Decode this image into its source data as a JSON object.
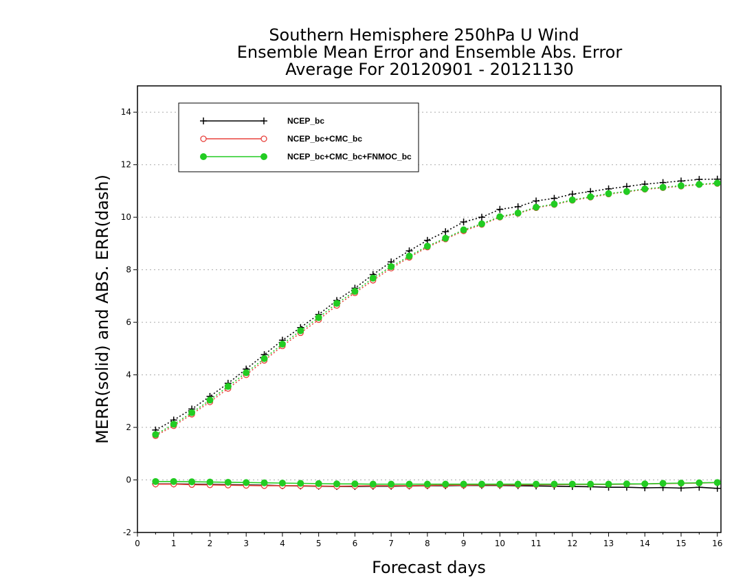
{
  "chart_data": {
    "type": "line",
    "title": [
      "Southern Hemisphere 250hPa U Wind",
      "Ensemble Mean Error and Ensemble Abs. Error",
      "Average For 20120901 - 20121130"
    ],
    "xlabel": "Forecast days",
    "ylabel": "MERR(solid) and ABS. ERR(dash)",
    "xlim": [
      0,
      16.1
    ],
    "ylim": [
      -2,
      15
    ],
    "xticks": [
      0,
      1,
      2,
      3,
      4,
      5,
      6,
      7,
      8,
      9,
      10,
      11,
      12,
      13,
      14,
      15,
      16
    ],
    "xtick_labels": [
      "0",
      "1",
      "2",
      "3",
      "4",
      "5",
      "6",
      "7",
      "8",
      "9",
      "10",
      "11",
      "12",
      "13",
      "14",
      "15",
      "16"
    ],
    "yticks": [
      -2,
      0,
      2,
      4,
      6,
      8,
      10,
      12,
      14
    ],
    "ytick_labels": [
      "-2",
      "0",
      "2",
      "4",
      "6",
      "8",
      "10",
      "12",
      "14"
    ],
    "grid": "horizontal dotted",
    "legend_position": "top-left",
    "x": [
      0.5,
      1,
      1.5,
      2,
      2.5,
      3,
      3.5,
      4,
      4.5,
      5,
      5.5,
      6,
      6.5,
      7,
      7.5,
      8,
      8.5,
      9,
      9.5,
      10,
      10.5,
      11,
      11.5,
      12,
      12.5,
      13,
      13.5,
      14,
      14.5,
      15,
      15.5,
      16
    ],
    "series": [
      {
        "name": "NCEP_bc",
        "color": "#000000",
        "marker": "plus",
        "merr": [
          -0.15,
          -0.15,
          -0.16,
          -0.17,
          -0.18,
          -0.19,
          -0.2,
          -0.22,
          -0.23,
          -0.24,
          -0.25,
          -0.25,
          -0.24,
          -0.24,
          -0.23,
          -0.22,
          -0.22,
          -0.21,
          -0.21,
          -0.21,
          -0.22,
          -0.23,
          -0.24,
          -0.25,
          -0.26,
          -0.28,
          -0.28,
          -0.3,
          -0.29,
          -0.31,
          -0.28,
          -0.32
        ],
        "abs_err": [
          1.9,
          2.28,
          2.7,
          3.18,
          3.68,
          4.22,
          4.77,
          5.32,
          5.8,
          6.3,
          6.83,
          7.3,
          7.82,
          8.3,
          8.72,
          9.12,
          9.45,
          9.82,
          10.0,
          10.3,
          10.4,
          10.62,
          10.72,
          10.88,
          10.98,
          11.08,
          11.17,
          11.26,
          11.32,
          11.38,
          11.44,
          11.45
        ]
      },
      {
        "name": "NCEP_bc+CMC_bc",
        "color": "#e8413c",
        "marker": "circle-open",
        "merr": [
          -0.16,
          -0.16,
          -0.18,
          -0.19,
          -0.2,
          -0.21,
          -0.22,
          -0.22,
          -0.22,
          -0.23,
          -0.24,
          -0.23,
          -0.22,
          -0.22,
          -0.22,
          -0.21,
          -0.2,
          -0.2,
          -0.19,
          -0.19,
          -0.19,
          -0.18,
          -0.18,
          -0.17,
          -0.17,
          -0.17,
          -0.16,
          -0.15,
          -0.14,
          -0.13,
          -0.12,
          -0.1
        ],
        "abs_err": [
          1.68,
          2.06,
          2.5,
          2.97,
          3.48,
          4.0,
          4.55,
          5.1,
          5.6,
          6.1,
          6.64,
          7.12,
          7.6,
          8.06,
          8.47,
          8.86,
          9.17,
          9.48,
          9.72,
          10.0,
          10.14,
          10.36,
          10.48,
          10.64,
          10.76,
          10.88,
          10.97,
          11.06,
          11.12,
          11.18,
          11.24,
          11.28
        ]
      },
      {
        "name": "NCEP_bc+CMC_bc+FNMOC_bc",
        "color": "#22cc22",
        "marker": "circle-filled",
        "merr": [
          -0.06,
          -0.06,
          -0.07,
          -0.08,
          -0.09,
          -0.1,
          -0.11,
          -0.12,
          -0.13,
          -0.14,
          -0.15,
          -0.15,
          -0.16,
          -0.16,
          -0.16,
          -0.16,
          -0.16,
          -0.16,
          -0.16,
          -0.16,
          -0.16,
          -0.16,
          -0.16,
          -0.16,
          -0.16,
          -0.16,
          -0.15,
          -0.15,
          -0.13,
          -0.12,
          -0.11,
          -0.1
        ],
        "abs_err": [
          1.73,
          2.12,
          2.56,
          3.04,
          3.56,
          4.08,
          4.62,
          5.17,
          5.68,
          6.18,
          6.72,
          7.18,
          7.68,
          8.12,
          8.52,
          8.9,
          9.2,
          9.52,
          9.75,
          10.02,
          10.16,
          10.38,
          10.5,
          10.66,
          10.78,
          10.9,
          10.98,
          11.08,
          11.14,
          11.2,
          11.25,
          11.3
        ]
      }
    ]
  }
}
